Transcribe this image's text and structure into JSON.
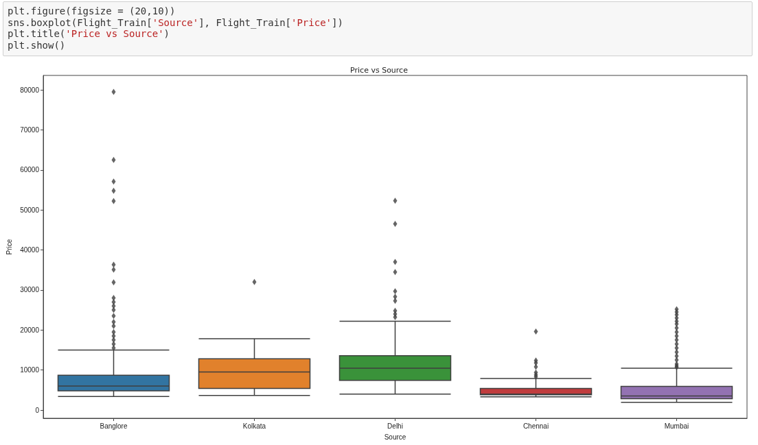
{
  "chart_data": {
    "type": "box",
    "title": "Price vs Source",
    "xlabel": "Source",
    "ylabel": "Price",
    "annotations": [
      "plt.figure(figsize = (20,10))",
      "sns.boxplot(Flight_Train['Source'], Flight_Train['Price'])",
      "plt.title('Price vs Source')",
      "plt.show()"
    ],
    "categories": [
      "Banglore",
      "Kolkata",
      "Delhi",
      "Chennai",
      "Mumbai"
    ],
    "colors": [
      "#3274a1",
      "#e1812c",
      "#3a923a",
      "#c03d3e",
      "#9372b2"
    ],
    "boxes": [
      {
        "low": 3400,
        "q1": 4800,
        "median": 6000,
        "q3": 8700,
        "high": 15000,
        "outliers": [
          79500,
          62500,
          57100,
          54800,
          52200,
          36300,
          35100,
          31900,
          28000,
          27000,
          26000,
          25000,
          23500,
          22000,
          21000,
          19500,
          18500,
          17500,
          16500,
          15500
        ]
      },
      {
        "low": 3650,
        "q1": 5400,
        "median": 9500,
        "q3": 12800,
        "high": 17800,
        "outliers": [
          32000
        ]
      },
      {
        "low": 4000,
        "q1": 7400,
        "median": 10450,
        "q3": 13600,
        "high": 22200,
        "outliers": [
          52300,
          46500,
          37000,
          34500,
          29700,
          28300,
          27300,
          24800,
          24000,
          23200
        ]
      },
      {
        "low": 3300,
        "q1": 3800,
        "median": 4000,
        "q3": 5400,
        "high": 7900,
        "outliers": [
          19600,
          12400,
          11800,
          10800,
          9400,
          8800,
          8300
        ]
      },
      {
        "low": 1950,
        "q1": 2850,
        "median": 3500,
        "q3": 5900,
        "high": 10450,
        "outliers": [
          25200,
          24500,
          23800,
          23000,
          22200,
          21500,
          20500,
          19500,
          18500,
          17500,
          16500,
          15500,
          14500,
          13500,
          12500,
          11500,
          11000,
          10700
        ]
      }
    ],
    "ylim": [
      -2050,
      83600
    ],
    "yticks": [
      0,
      10000,
      20000,
      30000,
      40000,
      50000,
      60000,
      70000,
      80000
    ],
    "grid": false,
    "marker": "diamond"
  }
}
